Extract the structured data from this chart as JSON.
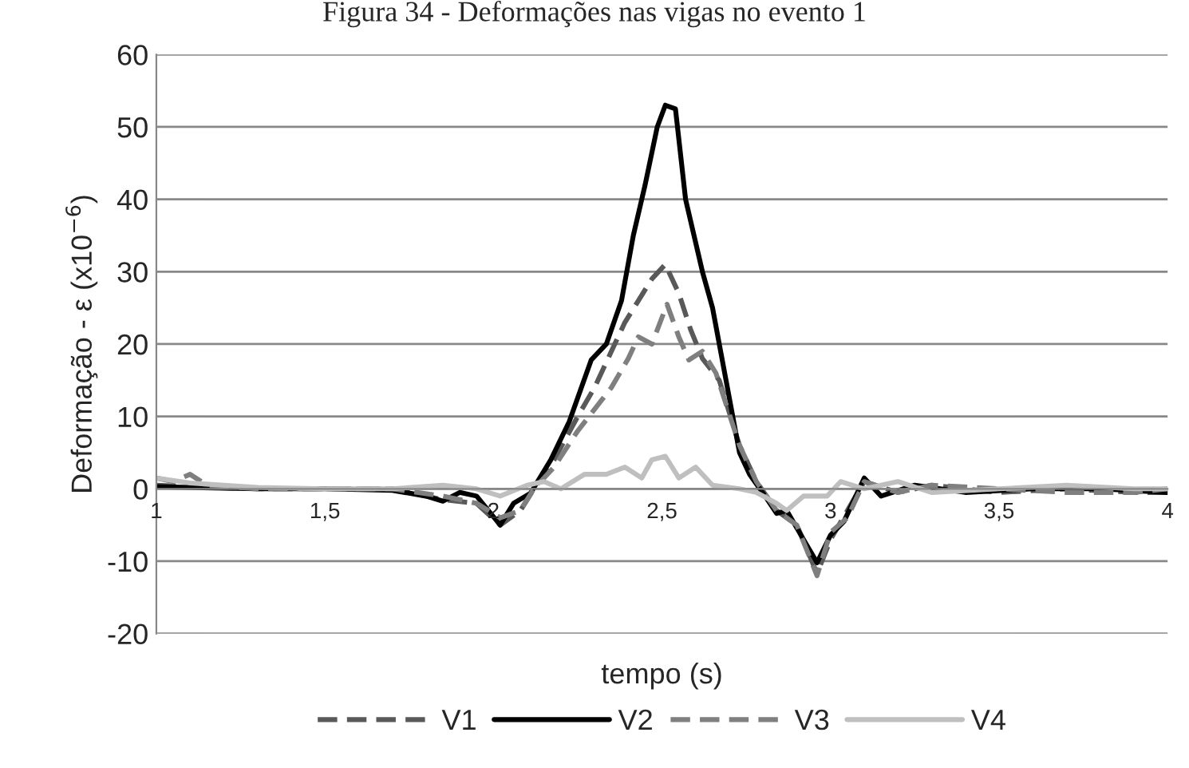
{
  "chart_data": {
    "type": "line",
    "title": "Figura 34 - Deformações nas vigas no evento 1",
    "xlabel": "tempo (s)",
    "ylabel": "Deformação - ε (x10$^{−6}$)",
    "xlim": [
      1,
      4
    ],
    "xticks": [
      1,
      {
        "value": 1.5,
        "label": "1,5"
      },
      2,
      {
        "value": 2.5,
        "label": "2,5"
      },
      3,
      {
        "value": 3.5,
        "label": "3,5"
      },
      4
    ],
    "ylim": [
      -20,
      60
    ],
    "yticks": [
      -20,
      -10,
      0,
      10,
      20,
      30,
      40,
      50,
      60
    ],
    "grid": "y",
    "legend": "bottom",
    "series": [
      {
        "name": "V1",
        "color": "#595959",
        "line_style": "dashed",
        "x": [
          1,
          1.1,
          1.3,
          1.5,
          1.7,
          1.85,
          1.95,
          2.02,
          2.08,
          2.12,
          2.18,
          2.25,
          2.3,
          2.35,
          2.39,
          2.43,
          2.47,
          2.51,
          2.55,
          2.585,
          2.62,
          2.67,
          2.73,
          2.78,
          2.84,
          2.9,
          2.96,
          3.0,
          3.05,
          3.1,
          3.2,
          3.3,
          3.5,
          3.7,
          3.9,
          4
        ],
        "values": [
          0.5,
          0.3,
          0,
          0,
          0,
          -1.5,
          -2,
          -5,
          -3,
          0,
          4,
          10,
          14,
          19,
          23,
          26,
          29,
          31,
          27,
          22,
          18,
          15,
          6,
          1,
          -3,
          -5,
          -11.7,
          -7,
          -3,
          1,
          -0.5,
          0.5,
          -0.5,
          0,
          -0.5,
          -0.5
        ]
      },
      {
        "name": "V2",
        "color": "#000000",
        "line_style": "solid",
        "x": [
          1,
          1.1,
          1.3,
          1.5,
          1.7,
          1.8,
          1.85,
          1.9,
          1.95,
          2.02,
          2.06,
          2.11,
          2.17,
          2.225,
          2.29,
          2.335,
          2.38,
          2.415,
          2.45,
          2.486,
          2.51,
          2.54,
          2.57,
          2.62,
          2.65,
          2.69,
          2.73,
          2.76,
          2.81,
          2.84,
          2.87,
          2.96,
          3.0,
          3.04,
          3.1,
          3.15,
          3.25,
          3.4,
          3.6,
          3.8,
          4
        ],
        "values": [
          0.3,
          0.2,
          0,
          0,
          -0.2,
          -1,
          -1.7,
          -0.5,
          -1,
          -5,
          -2,
          -0.6,
          4,
          9.3,
          17.8,
          20,
          26,
          35,
          42,
          50,
          53,
          52.5,
          40,
          30,
          25,
          15,
          5,
          2,
          -1.3,
          -3.4,
          -3,
          -10.2,
          -6.4,
          -4.5,
          1.5,
          -1,
          0.5,
          -0.5,
          0,
          0,
          -0.5
        ]
      },
      {
        "name": "V3",
        "color": "#7f7f7f",
        "line_style": "dashed",
        "x": [
          1,
          1.05,
          1.1,
          1.15,
          1.3,
          1.5,
          1.7,
          1.85,
          1.95,
          2.02,
          2.08,
          2.12,
          2.18,
          2.25,
          2.3,
          2.35,
          2.4,
          2.43,
          2.47,
          2.515,
          2.55,
          2.58,
          2.62,
          2.66,
          2.73,
          2.78,
          2.84,
          2.9,
          2.96,
          3.0,
          3.05,
          3.1,
          3.2,
          3.3,
          3.5,
          3.7,
          3.9,
          4
        ],
        "values": [
          1.5,
          1,
          2,
          0.5,
          0,
          0,
          0,
          -1,
          -2,
          -4,
          -3,
          0,
          3,
          8,
          11,
          14,
          18,
          21,
          20,
          25.5,
          21,
          17.8,
          19,
          16,
          6,
          1,
          -3,
          -5,
          -12,
          -6,
          -4,
          1,
          -0.5,
          0.5,
          0,
          -0.5,
          -0.5,
          0
        ]
      },
      {
        "name": "V4",
        "color": "#bfbfbf",
        "line_style": "solid",
        "x": [
          1,
          1.1,
          1.3,
          1.5,
          1.7,
          1.85,
          1.95,
          2.02,
          2.1,
          2.15,
          2.2,
          2.27,
          2.335,
          2.39,
          2.44,
          2.47,
          2.51,
          2.55,
          2.6,
          2.65,
          2.73,
          2.78,
          2.84,
          2.87,
          2.92,
          2.99,
          3.03,
          3.1,
          3.2,
          3.3,
          3.5,
          3.7,
          3.9,
          4
        ],
        "values": [
          1.5,
          0.8,
          0.2,
          0,
          0,
          0.5,
          0,
          -1,
          0.5,
          1,
          0,
          2,
          2,
          3,
          1.5,
          4,
          4.5,
          1.5,
          3,
          0.5,
          0,
          -0.5,
          -2,
          -3,
          -1,
          -1,
          1,
          0,
          1,
          -0.5,
          0,
          0.5,
          0,
          0
        ]
      }
    ]
  }
}
